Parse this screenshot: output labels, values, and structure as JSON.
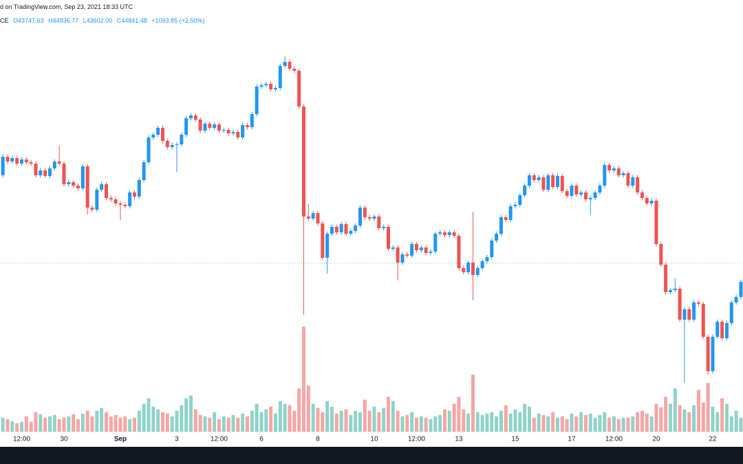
{
  "header": {
    "published": "d on TradingView.com, Sep 23, 2021 18:33 UTC",
    "symbol": "CE",
    "ohlc": [
      "O43747.63",
      "H44936.77",
      "L43602.00",
      "C44841.48",
      "+1093.85 (+2.50%)"
    ]
  },
  "chart_data": {
    "type": "candlestick",
    "up_color": "#2196f3",
    "down_color": "#ef5350",
    "volume_up_color": "#8fd3c9",
    "volume_down_color": "#f5a6a4",
    "ylim": [
      36760,
      55000
    ],
    "vlim": [
      0,
      600
    ],
    "categories": [
      null,
      null,
      null,
      null,
      "12:00",
      null,
      null,
      null,
      null,
      null,
      null,
      null,
      null,
      "30",
      null,
      null,
      null,
      null,
      null,
      null,
      null,
      null,
      null,
      null,
      null,
      "Sep",
      null,
      null,
      null,
      null,
      null,
      null,
      null,
      null,
      null,
      null,
      null,
      "3",
      null,
      null,
      null,
      null,
      null,
      null,
      null,
      null,
      "12:00",
      null,
      null,
      null,
      null,
      null,
      null,
      null,
      null,
      "6",
      null,
      null,
      null,
      null,
      null,
      null,
      null,
      null,
      null,
      null,
      null,
      "8",
      null,
      null,
      null,
      null,
      null,
      null,
      null,
      null,
      null,
      null,
      null,
      "10",
      null,
      null,
      null,
      null,
      null,
      null,
      null,
      null,
      "12:00",
      null,
      null,
      null,
      null,
      null,
      null,
      null,
      null,
      "13",
      null,
      null,
      null,
      null,
      null,
      null,
      null,
      null,
      null,
      null,
      null,
      "15",
      null,
      null,
      null,
      null,
      null,
      null,
      null,
      null,
      null,
      null,
      null,
      "17",
      null,
      null,
      null,
      null,
      null,
      null,
      null,
      null,
      "12:00",
      null,
      null,
      null,
      null,
      null,
      null,
      null,
      null,
      "20",
      null,
      null,
      null,
      null,
      null,
      null,
      null,
      null,
      null,
      null,
      null,
      "22",
      null,
      null,
      null,
      null,
      null,
      null
    ],
    "open": [
      47950,
      48760,
      48550,
      48700,
      48460,
      48640,
      48520,
      48460,
      47950,
      48160,
      47920,
      48250,
      48550,
      48460,
      47560,
      47650,
      47500,
      47380,
      48340,
      46540,
      46450,
      47320,
      47560,
      46960,
      46900,
      46720,
      46660,
      46600,
      47200,
      47020,
      47740,
      48520,
      49600,
      49720,
      50020,
      49450,
      49180,
      49270,
      49300,
      49720,
      50440,
      50560,
      50380,
      49900,
      50200,
      50020,
      50170,
      49900,
      49930,
      49780,
      49840,
      49600,
      50140,
      50050,
      50620,
      51820,
      51880,
      51940,
      51700,
      51760,
      52720,
      52900,
      52600,
      52510,
      50950,
      46150,
      46060,
      46300,
      45850,
      44350,
      45400,
      45700,
      45460,
      45820,
      45400,
      45520,
      45760,
      46540,
      46120,
      46060,
      46150,
      45640,
      45700,
      44740,
      44800,
      44140,
      44500,
      44440,
      44950,
      44680,
      44800,
      44560,
      44620,
      45400,
      45460,
      45340,
      45460,
      45310,
      43900,
      43720,
      44140,
      43600,
      43900,
      44200,
      44380,
      45100,
      45400,
      46120,
      46000,
      46600,
      46660,
      47080,
      47500,
      47950,
      47740,
      47860,
      47320,
      47950,
      47440,
      47920,
      47260,
      47050,
      47500,
      47110,
      47200,
      46900,
      46960,
      47200,
      47500,
      48400,
      48160,
      48250,
      47950,
      48040,
      47500,
      47860,
      47200,
      46960,
      46720,
      46840,
      44950,
      44050,
      42850,
      42940,
      43000,
      41650,
      42100,
      41650,
      42400,
      42340,
      40900,
      39400,
      40900,
      41560,
      40840,
      41500,
      42400,
      42640
    ],
    "high": [
      48860,
      48860,
      48800,
      48800,
      48740,
      48740,
      48620,
      48560,
      48260,
      48260,
      48350,
      48650,
      49240,
      48560,
      47750,
      47750,
      47600,
      48440,
      48440,
      46640,
      47420,
      47660,
      47660,
      47060,
      47000,
      46820,
      46760,
      47300,
      47300,
      47840,
      48620,
      49700,
      49820,
      50120,
      50120,
      49550,
      49370,
      49400,
      49820,
      50540,
      50660,
      50660,
      50480,
      50300,
      50300,
      50270,
      50270,
      50030,
      50030,
      49940,
      49940,
      50240,
      50240,
      50720,
      51920,
      51980,
      52040,
      52040,
      51860,
      52820,
      53140,
      53000,
      52700,
      52610,
      51050,
      46690,
      46400,
      46400,
      45950,
      45500,
      45800,
      45800,
      45920,
      45920,
      45620,
      45860,
      46640,
      46640,
      46220,
      46250,
      46250,
      45800,
      45800,
      44900,
      44900,
      44600,
      44600,
      45050,
      45050,
      44900,
      44900,
      44720,
      45500,
      45560,
      45560,
      45560,
      45560,
      45410,
      44000,
      44240,
      46360,
      44000,
      44300,
      44480,
      45200,
      45500,
      46220,
      46220,
      46700,
      46760,
      47180,
      47600,
      48050,
      48050,
      47960,
      47960,
      48050,
      48050,
      48020,
      48020,
      47360,
      47600,
      47600,
      47300,
      47300,
      47060,
      47300,
      47600,
      48500,
      48500,
      48350,
      48350,
      48140,
      48140,
      47960,
      47960,
      47300,
      47060,
      46940,
      46940,
      45050,
      44150,
      43040,
      43450,
      43100,
      42200,
      42200,
      42500,
      42500,
      42440,
      41000,
      41000,
      41660,
      41660,
      41600,
      42500,
      42740,
      43400
    ],
    "low": [
      47850,
      48450,
      48450,
      48360,
      48360,
      48420,
      48360,
      47850,
      47850,
      47820,
      47820,
      48150,
      48360,
      47460,
      47460,
      47400,
      47280,
      47280,
      46240,
      46350,
      46350,
      47220,
      46860,
      46800,
      46620,
      46000,
      46500,
      46500,
      46920,
      46920,
      47640,
      48420,
      49500,
      49620,
      49350,
      49080,
      49080,
      48100,
      49200,
      49620,
      50340,
      50280,
      49800,
      49800,
      49920,
      49920,
      49800,
      49800,
      49680,
      49680,
      49500,
      49500,
      49950,
      49950,
      50520,
      51720,
      51780,
      51600,
      51600,
      51660,
      52620,
      52500,
      52410,
      50850,
      41860,
      45960,
      45960,
      45750,
      44250,
      43660,
      45300,
      45360,
      45360,
      45300,
      45300,
      45420,
      45660,
      46020,
      45960,
      45960,
      45540,
      45540,
      44640,
      44640,
      43360,
      44040,
      44340,
      44340,
      44580,
      44580,
      44460,
      44460,
      44520,
      45300,
      45240,
      45240,
      45210,
      43800,
      43620,
      43620,
      42490,
      43500,
      43800,
      44100,
      44280,
      45000,
      45300,
      45900,
      45900,
      46500,
      46560,
      46980,
      47400,
      47640,
      47640,
      47220,
      47220,
      47340,
      47340,
      47160,
      46950,
      46950,
      47010,
      47010,
      46800,
      46240,
      46860,
      47100,
      47400,
      48060,
      48060,
      47850,
      47850,
      47400,
      47400,
      47100,
      46860,
      46620,
      46620,
      44850,
      43950,
      42750,
      42750,
      42840,
      41550,
      38890,
      41550,
      41550,
      42240,
      40800,
      39250,
      39300,
      40800,
      40740,
      40740,
      41400,
      42300,
      42540
    ],
    "close": [
      48760,
      48550,
      48700,
      48460,
      48640,
      48520,
      48460,
      47950,
      48160,
      47920,
      48250,
      48550,
      48460,
      47560,
      47650,
      47500,
      47380,
      48340,
      46540,
      46450,
      47320,
      47560,
      46960,
      46900,
      46720,
      46660,
      46600,
      47200,
      47020,
      47740,
      48520,
      49600,
      49720,
      50020,
      49450,
      49180,
      49270,
      49300,
      49720,
      50440,
      50560,
      50380,
      49900,
      50200,
      50020,
      50170,
      49900,
      49930,
      49780,
      49840,
      49600,
      50140,
      50050,
      50620,
      51820,
      51880,
      51940,
      51700,
      51760,
      52720,
      52900,
      52600,
      52510,
      50950,
      46150,
      46060,
      46300,
      45850,
      44350,
      45400,
      45700,
      45460,
      45820,
      45400,
      45520,
      45760,
      46540,
      46120,
      46060,
      46150,
      45640,
      45700,
      44740,
      44800,
      44140,
      44500,
      44440,
      44950,
      44680,
      44800,
      44560,
      44620,
      45400,
      45460,
      45340,
      45460,
      45310,
      43900,
      43720,
      44140,
      43600,
      43900,
      44200,
      44380,
      45100,
      45400,
      46120,
      46000,
      46600,
      46660,
      47080,
      47500,
      47950,
      47740,
      47860,
      47320,
      47950,
      47440,
      47920,
      47260,
      47050,
      47500,
      47110,
      47200,
      46900,
      46960,
      47200,
      47500,
      48400,
      48160,
      48250,
      47950,
      48040,
      47500,
      47860,
      47200,
      46960,
      46720,
      46840,
      44950,
      44050,
      42850,
      42940,
      43000,
      41650,
      42100,
      41650,
      42400,
      42340,
      40900,
      39400,
      40900,
      41560,
      40840,
      41500,
      42400,
      42640,
      43300
    ],
    "volume": [
      20,
      18,
      15,
      12,
      14,
      22,
      14,
      28,
      25,
      20,
      22,
      24,
      18,
      20,
      22,
      25,
      18,
      26,
      30,
      22,
      30,
      34,
      28,
      22,
      24,
      20,
      22,
      18,
      20,
      30,
      40,
      48,
      36,
      32,
      28,
      26,
      22,
      30,
      38,
      48,
      52,
      32,
      24,
      22,
      20,
      28,
      18,
      22,
      20,
      24,
      20,
      26,
      22,
      30,
      40,
      28,
      32,
      36,
      26,
      44,
      40,
      38,
      30,
      62,
      151,
      66,
      40,
      34,
      28,
      44,
      36,
      26,
      30,
      32,
      24,
      30,
      28,
      46,
      30,
      36,
      28,
      34,
      50,
      44,
      30,
      22,
      24,
      28,
      20,
      22,
      20,
      18,
      22,
      24,
      32,
      30,
      40,
      50,
      32,
      26,
      82,
      28,
      24,
      26,
      28,
      22,
      30,
      38,
      26,
      32,
      28,
      40,
      36,
      20,
      26,
      24,
      22,
      28,
      20,
      22,
      18,
      26,
      22,
      28,
      24,
      26,
      20,
      24,
      28,
      20,
      22,
      18,
      20,
      20,
      22,
      28,
      30,
      26,
      22,
      40,
      35,
      50,
      40,
      62,
      38,
      32,
      28,
      38,
      60,
      42,
      70,
      36,
      28,
      48,
      40,
      22,
      30,
      20
    ]
  }
}
